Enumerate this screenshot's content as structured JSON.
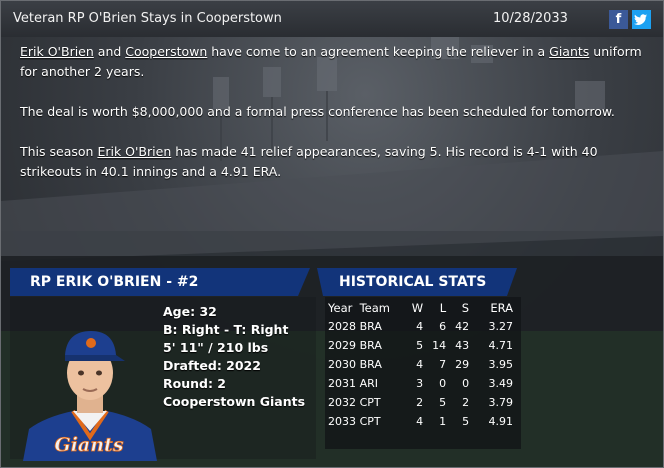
{
  "header": {
    "title": "Veteran RP O'Brien Stays in Cooperstown",
    "date": "10/28/2033",
    "facebook_icon_glyph": "f",
    "twitter_icon_glyph": "t"
  },
  "article": {
    "p1": {
      "player_link": "Erik O'Brien",
      "t1": " and ",
      "city_link": "Cooperstown",
      "t2": " have come to an agreement keeping the reliever in a ",
      "team_link": "Giants",
      "t3": " uniform for another 2 years."
    },
    "p2": "The deal is worth $8,000,000 and a formal press conference has been scheduled for tomorrow.",
    "p3": {
      "t1": "This season ",
      "player_link": "Erik O'Brien",
      "t2": " has made 41 relief appearances, saving 5. His record is 4-1 with 40 strikeouts in 40.1 innings and a 4.91 ERA."
    }
  },
  "player": {
    "banner": "RP ERIK O'BRIEN - #2",
    "age": "Age: 32",
    "bats_throws": "B: Right - T: Right",
    "height_weight": "5' 11\" / 210 lbs",
    "drafted": "Drafted: 2022",
    "round": "Round: 2",
    "team": "Cooperstown Giants",
    "jersey_text": "Giants"
  },
  "stats": {
    "banner": "HISTORICAL STATS",
    "headers": [
      "Year",
      "Team",
      "W",
      "L",
      "S",
      "ERA"
    ],
    "rows": [
      [
        "2028",
        "BRA",
        "4",
        "6",
        "42",
        "3.27"
      ],
      [
        "2029",
        "BRA",
        "5",
        "14",
        "43",
        "4.71"
      ],
      [
        "2030",
        "BRA",
        "4",
        "7",
        "29",
        "3.95"
      ],
      [
        "2031",
        "ARI",
        "3",
        "0",
        "0",
        "3.49"
      ],
      [
        "2032",
        "CPT",
        "2",
        "5",
        "2",
        "3.79"
      ],
      [
        "2033",
        "CPT",
        "4",
        "1",
        "5",
        "4.91"
      ]
    ]
  },
  "colors": {
    "banner_blue": "#12347a",
    "facebook": "#3b5998",
    "twitter": "#1da1f2",
    "jersey_blue": "#1d3f8f",
    "cap_orange": "#e06a1b"
  }
}
